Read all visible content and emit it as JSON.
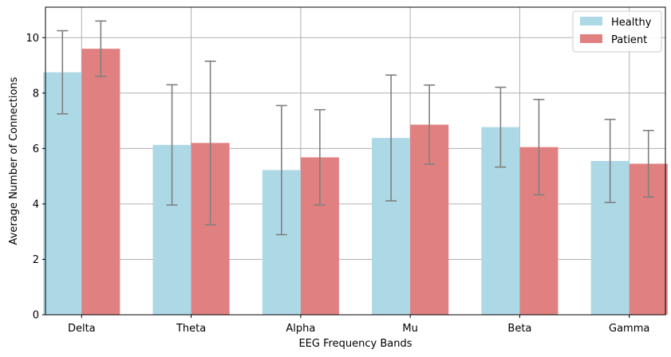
{
  "chart_data": {
    "type": "bar",
    "title": "",
    "xlabel": "EEG Frequency Bands",
    "ylabel": "Average Number of Connections",
    "categories": [
      "Delta",
      "Theta",
      "Alpha",
      "Mu",
      "Beta",
      "Gamma"
    ],
    "ylim": [
      0,
      11.1
    ],
    "yticks": [
      0,
      2,
      4,
      6,
      8,
      10
    ],
    "grid": true,
    "legend_position": "top-right",
    "series": [
      {
        "name": "Healthy",
        "color": "#add8e6",
        "values": [
          8.75,
          6.13,
          5.22,
          6.38,
          6.77,
          5.55
        ],
        "errors": [
          1.5,
          2.17,
          2.33,
          2.27,
          1.44,
          1.5
        ]
      },
      {
        "name": "Patient",
        "color": "#e08080",
        "values": [
          9.6,
          6.2,
          5.68,
          6.86,
          6.05,
          5.45
        ],
        "errors": [
          1.0,
          2.95,
          1.72,
          1.43,
          1.72,
          1.2
        ]
      }
    ],
    "errorbar_color": "#808080"
  }
}
